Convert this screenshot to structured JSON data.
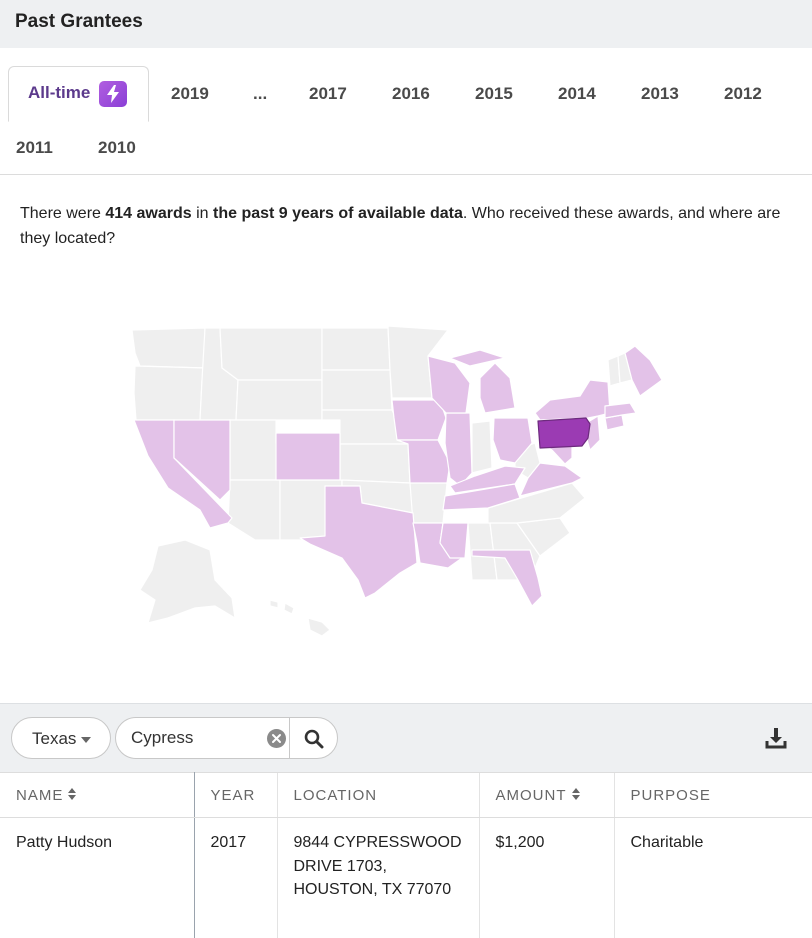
{
  "header": {
    "title": "Past Grantees"
  },
  "tabs": [
    {
      "label": "All-time",
      "active": true,
      "icon": "lightning-bolt-icon"
    },
    {
      "label": "2019"
    },
    {
      "label": "..."
    },
    {
      "label": "2017"
    },
    {
      "label": "2016"
    },
    {
      "label": "2015"
    },
    {
      "label": "2014"
    },
    {
      "label": "2013"
    },
    {
      "label": "2012"
    },
    {
      "label": "2011"
    },
    {
      "label": "2010"
    }
  ],
  "intro": {
    "pre": "There were ",
    "count": "414 awards",
    "mid": " in ",
    "period": "the past 9 years of available data",
    "post": ". Who received these awards, and where are they located?"
  },
  "map": {
    "highlighted_states_light": [
      "California",
      "Nevada",
      "Colorado",
      "Texas",
      "Iowa",
      "Missouri",
      "Illinois",
      "Louisiana",
      "Mississippi",
      "Tennessee",
      "Kentucky",
      "Ohio",
      "Michigan",
      "Wisconsin",
      "Florida",
      "Virginia",
      "Maryland",
      "Delaware",
      "New Jersey",
      "New York",
      "Connecticut",
      "Massachusetts",
      "Maine"
    ],
    "highlighted_states_dark": [
      "Pennsylvania"
    ],
    "colors": {
      "base": "#efefef",
      "light": "#e3c2e8",
      "dark": "#9b3bb3"
    }
  },
  "filters": {
    "state": "Texas",
    "search_value": "Cypress",
    "search_icon": "search-icon",
    "clear_icon": "clear-circle-icon",
    "download_icon": "download-icon"
  },
  "table": {
    "columns": [
      "NAME",
      "YEAR",
      "LOCATION",
      "AMOUNT",
      "PURPOSE"
    ],
    "rows": [
      {
        "name": "Patty Hudson",
        "year": "2017",
        "location": "9844 CYPRESSWOOD DRIVE 1703, HOUSTON, TX 77070",
        "amount": "$1,200",
        "purpose": "Charitable"
      }
    ]
  },
  "colors": {
    "accent": "#5c3a8c",
    "bolt": "#9b4fdc",
    "header_bg": "#eef0f2"
  }
}
